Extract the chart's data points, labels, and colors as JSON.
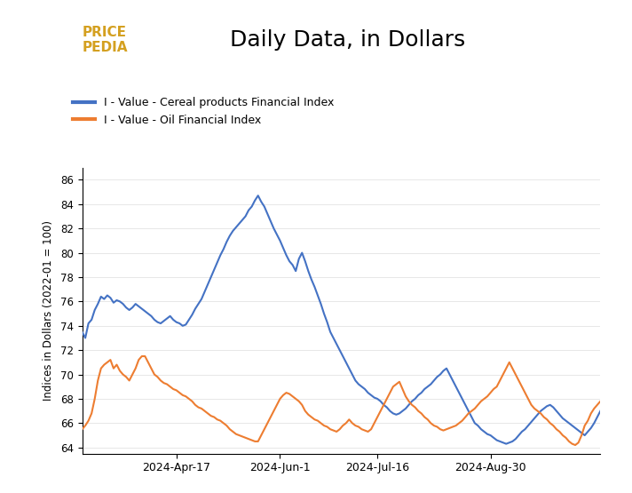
{
  "title": "Daily Data, in Dollars",
  "ylabel": "Indices in Dollars (2022-01 = 100)",
  "cereal_color": "#4472C4",
  "oil_color": "#ED7D31",
  "cereal_label": "I - Value - Cereal products Financial Index",
  "oil_label": "I - Value - Oil Financial Index",
  "ylim": [
    63.5,
    87
  ],
  "yticks": [
    64,
    66,
    68,
    70,
    72,
    74,
    76,
    78,
    80,
    82,
    84,
    86
  ],
  "xtick_labels": [
    "2024-Apr-17",
    "2024-Jun-1",
    "2024-Jul-16",
    "2024-Aug-30"
  ],
  "background_color": "#ffffff",
  "cereal_x": [
    0,
    1,
    2,
    3,
    4,
    5,
    6,
    7,
    8,
    9,
    10,
    11,
    12,
    13,
    14,
    15,
    16,
    17,
    18,
    19,
    20,
    21,
    22,
    23,
    24,
    25,
    26,
    27,
    28,
    29,
    30,
    31,
    32,
    33,
    34,
    35,
    36,
    37,
    38,
    39,
    40,
    41,
    42,
    43,
    44,
    45,
    46,
    47,
    48,
    49,
    50,
    51,
    52,
    53,
    54,
    55,
    56,
    57,
    58,
    59,
    60,
    61,
    62,
    63,
    64,
    65,
    66,
    67,
    68,
    69,
    70,
    71,
    72,
    73,
    74,
    75,
    76,
    77,
    78,
    79,
    80,
    81,
    82,
    83,
    84,
    85,
    86,
    87,
    88,
    89,
    90,
    91,
    92,
    93,
    94,
    95,
    96,
    97,
    98,
    99,
    100,
    101,
    102,
    103,
    104,
    105,
    106,
    107,
    108,
    109,
    110,
    111,
    112,
    113,
    114,
    115,
    116,
    117,
    118,
    119,
    120,
    121,
    122,
    123,
    124,
    125,
    126,
    127,
    128,
    129,
    130,
    131,
    132,
    133,
    134,
    135,
    136,
    137,
    138,
    139,
    140,
    141,
    142,
    143,
    144,
    145,
    146,
    147,
    148,
    149,
    150,
    151,
    152,
    153,
    154,
    155,
    156,
    157,
    158,
    159,
    160,
    161,
    162,
    163,
    164,
    165
  ],
  "cereal_y": [
    73.5,
    73.0,
    74.2,
    74.5,
    75.3,
    75.8,
    76.4,
    76.2,
    76.5,
    76.3,
    75.9,
    76.1,
    76.0,
    75.8,
    75.5,
    75.3,
    75.5,
    75.8,
    75.6,
    75.4,
    75.2,
    75.0,
    74.8,
    74.5,
    74.3,
    74.2,
    74.4,
    74.6,
    74.8,
    74.5,
    74.3,
    74.2,
    74.0,
    74.1,
    74.5,
    74.9,
    75.4,
    75.8,
    76.2,
    76.8,
    77.4,
    78.0,
    78.6,
    79.2,
    79.8,
    80.3,
    80.9,
    81.4,
    81.8,
    82.1,
    82.4,
    82.7,
    83.0,
    83.5,
    83.8,
    84.3,
    84.7,
    84.2,
    83.8,
    83.2,
    82.6,
    82.0,
    81.5,
    81.0,
    80.4,
    79.8,
    79.3,
    79.0,
    78.5,
    79.5,
    80.0,
    79.3,
    78.5,
    77.8,
    77.2,
    76.5,
    75.8,
    75.0,
    74.3,
    73.5,
    73.0,
    72.5,
    72.0,
    71.5,
    71.0,
    70.5,
    70.0,
    69.5,
    69.2,
    69.0,
    68.8,
    68.5,
    68.3,
    68.1,
    68.0,
    67.8,
    67.5,
    67.3,
    67.0,
    66.8,
    66.7,
    66.8,
    67.0,
    67.2,
    67.5,
    67.8,
    68.0,
    68.3,
    68.5,
    68.8,
    69.0,
    69.2,
    69.5,
    69.8,
    70.0,
    70.3,
    70.5,
    70.0,
    69.5,
    69.0,
    68.5,
    68.0,
    67.5,
    67.0,
    66.5,
    66.0,
    65.8,
    65.5,
    65.3,
    65.1,
    65.0,
    64.8,
    64.6,
    64.5,
    64.4,
    64.3,
    64.4,
    64.5,
    64.7,
    65.0,
    65.3,
    65.5,
    65.8,
    66.1,
    66.4,
    66.7,
    67.0,
    67.2,
    67.4,
    67.5,
    67.3,
    67.0,
    66.7,
    66.4,
    66.2,
    66.0,
    65.8,
    65.6,
    65.4,
    65.2,
    65.0,
    65.3,
    65.6,
    66.0,
    66.5,
    67.0
  ],
  "oil_x": [
    0,
    1,
    2,
    3,
    4,
    5,
    6,
    7,
    8,
    9,
    10,
    11,
    12,
    13,
    14,
    15,
    16,
    17,
    18,
    19,
    20,
    21,
    22,
    23,
    24,
    25,
    26,
    27,
    28,
    29,
    30,
    31,
    32,
    33,
    34,
    35,
    36,
    37,
    38,
    39,
    40,
    41,
    42,
    43,
    44,
    45,
    46,
    47,
    48,
    49,
    50,
    51,
    52,
    53,
    54,
    55,
    56,
    57,
    58,
    59,
    60,
    61,
    62,
    63,
    64,
    65,
    66,
    67,
    68,
    69,
    70,
    71,
    72,
    73,
    74,
    75,
    76,
    77,
    78,
    79,
    80,
    81,
    82,
    83,
    84,
    85,
    86,
    87,
    88,
    89,
    90,
    91,
    92,
    93,
    94,
    95,
    96,
    97,
    98,
    99,
    100,
    101,
    102,
    103,
    104,
    105,
    106,
    107,
    108,
    109,
    110,
    111,
    112,
    113,
    114,
    115,
    116,
    117,
    118,
    119,
    120,
    121,
    122,
    123,
    124,
    125,
    126,
    127,
    128,
    129,
    130,
    131,
    132,
    133,
    134,
    135,
    136,
    137,
    138,
    139,
    140,
    141,
    142,
    143,
    144,
    145,
    146,
    147,
    148,
    149,
    150,
    151,
    152,
    153,
    154,
    155,
    156,
    157,
    158,
    159,
    160,
    161,
    162,
    163,
    164,
    165
  ],
  "oil_y": [
    65.5,
    65.8,
    66.2,
    66.8,
    68.0,
    69.5,
    70.5,
    70.8,
    71.0,
    71.2,
    70.5,
    70.8,
    70.3,
    70.0,
    69.8,
    69.5,
    70.0,
    70.5,
    71.2,
    71.5,
    71.5,
    71.0,
    70.5,
    70.0,
    69.8,
    69.5,
    69.3,
    69.2,
    69.0,
    68.8,
    68.7,
    68.5,
    68.3,
    68.2,
    68.0,
    67.8,
    67.5,
    67.3,
    67.2,
    67.0,
    66.8,
    66.6,
    66.5,
    66.3,
    66.2,
    66.0,
    65.8,
    65.5,
    65.3,
    65.1,
    65.0,
    64.9,
    64.8,
    64.7,
    64.6,
    64.5,
    64.5,
    65.0,
    65.5,
    66.0,
    66.5,
    67.0,
    67.5,
    68.0,
    68.3,
    68.5,
    68.4,
    68.2,
    68.0,
    67.8,
    67.5,
    67.0,
    66.7,
    66.5,
    66.3,
    66.2,
    66.0,
    65.8,
    65.7,
    65.5,
    65.4,
    65.3,
    65.5,
    65.8,
    66.0,
    66.3,
    66.0,
    65.8,
    65.7,
    65.5,
    65.4,
    65.3,
    65.5,
    66.0,
    66.5,
    67.0,
    67.5,
    68.0,
    68.5,
    69.0,
    69.2,
    69.4,
    68.8,
    68.2,
    67.8,
    67.5,
    67.3,
    67.0,
    66.8,
    66.5,
    66.3,
    66.0,
    65.8,
    65.7,
    65.5,
    65.4,
    65.5,
    65.6,
    65.7,
    65.8,
    66.0,
    66.2,
    66.5,
    66.8,
    67.0,
    67.2,
    67.5,
    67.8,
    68.0,
    68.2,
    68.5,
    68.8,
    69.0,
    69.5,
    70.0,
    70.5,
    71.0,
    70.5,
    70.0,
    69.5,
    69.0,
    68.5,
    68.0,
    67.5,
    67.2,
    67.0,
    66.8,
    66.5,
    66.3,
    66.0,
    65.8,
    65.5,
    65.3,
    65.0,
    64.8,
    64.5,
    64.3,
    64.2,
    64.4,
    65.0,
    65.8,
    66.2,
    66.8,
    67.2,
    67.5,
    67.8
  ]
}
